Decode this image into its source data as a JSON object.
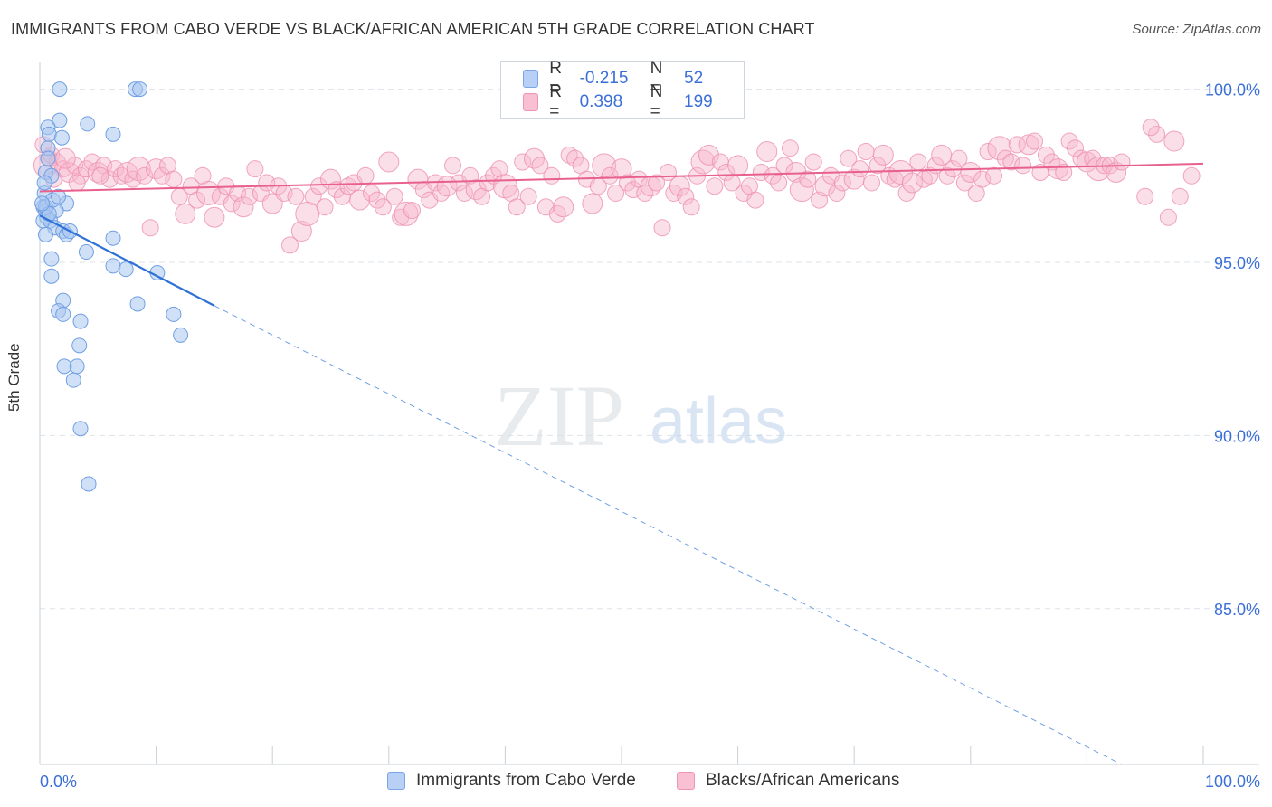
{
  "title": "IMMIGRANTS FROM CABO VERDE VS BLACK/AFRICAN AMERICAN 5TH GRADE CORRELATION CHART",
  "source": "Source: ZipAtlas.com",
  "watermark": {
    "zip": "ZIP",
    "atlas": "atlas"
  },
  "legend": {
    "r_label": "R =",
    "n_label": "N =",
    "rows": [
      {
        "r": "-0.215",
        "n": "52",
        "swatch_fill": "#b8d0f5",
        "swatch_stroke": "#7aa5e6"
      },
      {
        "r": "0.398",
        "n": "199",
        "swatch_fill": "#f8c0d2",
        "swatch_stroke": "#ef94b2"
      }
    ]
  },
  "bottom_legend": [
    {
      "label": "Immigrants from Cabo Verde"
    },
    {
      "label": "Blacks/African Americans"
    }
  ],
  "colors": {
    "blue_fill": "#a9c7f1",
    "blue_stroke": "#6f9fe3",
    "blue_line": "#2f72d6",
    "pink_fill": "#f7b7cc",
    "pink_stroke": "#ee8eb0",
    "pink_line": "#e8608d",
    "axis_label_blue": "#3a6fd8",
    "grid": "#dde3ea"
  },
  "chart_data": {
    "type": "scatter",
    "title": "IMMIGRANTS FROM CABO VERDE VS BLACK/AFRICAN AMERICAN 5TH GRADE CORRELATION CHART",
    "xlabel": "",
    "ylabel": "5th Grade",
    "xlim": [
      0,
      100
    ],
    "ylim": [
      80.5,
      100.8
    ],
    "x_tick_labels": [
      "0.0%",
      "100.0%"
    ],
    "y_ticks": [
      100,
      95,
      90,
      85
    ],
    "y_tick_labels": [
      "100.0%",
      "95.0%",
      "90.0%",
      "85.0%"
    ],
    "grid": true,
    "legend_position": "top-center",
    "series": [
      {
        "name": "Immigrants from Cabo Verde",
        "color": "#a9c7f1",
        "r": -0.215,
        "n": 52,
        "trend": {
          "x0": 0.0,
          "y0": 96.35,
          "x1": 15.0,
          "y1": 93.75,
          "dashed_to_x": 93.0,
          "dashed_to_y": 80.5
        },
        "points": [
          [
            1.7,
            100.0
          ],
          [
            8.2,
            100.0
          ],
          [
            8.6,
            100.0
          ],
          [
            1.7,
            99.1
          ],
          [
            4.1,
            99.0
          ],
          [
            0.7,
            98.9
          ],
          [
            0.8,
            98.7
          ],
          [
            1.9,
            98.6
          ],
          [
            6.3,
            98.7
          ],
          [
            0.7,
            98.3
          ],
          [
            0.5,
            97.6
          ],
          [
            1.0,
            97.5
          ],
          [
            0.4,
            97.0
          ],
          [
            2.3,
            96.7
          ],
          [
            0.3,
            96.6
          ],
          [
            0.5,
            96.5
          ],
          [
            1.4,
            96.5
          ],
          [
            0.6,
            96.3
          ],
          [
            0.3,
            96.2
          ],
          [
            0.9,
            96.2
          ],
          [
            1.3,
            96.0
          ],
          [
            2.0,
            95.9
          ],
          [
            2.3,
            95.8
          ],
          [
            0.5,
            95.8
          ],
          [
            6.3,
            95.7
          ],
          [
            4.0,
            95.3
          ],
          [
            1.0,
            95.1
          ],
          [
            6.3,
            94.9
          ],
          [
            7.4,
            94.8
          ],
          [
            10.1,
            94.7
          ],
          [
            1.0,
            94.6
          ],
          [
            2.0,
            93.9
          ],
          [
            8.4,
            93.8
          ],
          [
            1.6,
            93.6
          ],
          [
            2.0,
            93.5
          ],
          [
            11.5,
            93.5
          ],
          [
            3.5,
            93.3
          ],
          [
            12.1,
            92.9
          ],
          [
            3.4,
            92.6
          ],
          [
            2.1,
            92.0
          ],
          [
            3.2,
            92.0
          ],
          [
            2.9,
            91.6
          ],
          [
            3.5,
            90.2
          ],
          [
            4.2,
            88.6
          ],
          [
            0.5,
            96.6
          ],
          [
            0.8,
            96.4
          ],
          [
            1.1,
            96.8
          ],
          [
            0.4,
            97.3
          ],
          [
            1.6,
            96.9
          ],
          [
            0.7,
            98.0
          ],
          [
            2.6,
            95.9
          ],
          [
            0.2,
            96.7
          ]
        ]
      },
      {
        "name": "Blacks/African Americans",
        "color": "#f7b7cc",
        "r": 0.398,
        "n": 199,
        "trend": {
          "x0": 0.0,
          "y0": 97.05,
          "x1": 100.0,
          "y1": 97.85
        },
        "points": [
          [
            0.5,
            97.8
          ],
          [
            0.8,
            98.0
          ],
          [
            1.0,
            98.1
          ],
          [
            1.5,
            97.9
          ],
          [
            2.0,
            97.7
          ],
          [
            2.5,
            97.6
          ],
          [
            3.0,
            97.8
          ],
          [
            3.5,
            97.5
          ],
          [
            4.0,
            97.7
          ],
          [
            4.5,
            97.9
          ],
          [
            5.0,
            97.6
          ],
          [
            5.5,
            97.8
          ],
          [
            6.0,
            97.4
          ],
          [
            6.5,
            97.7
          ],
          [
            7.0,
            97.5
          ],
          [
            7.5,
            97.6
          ],
          [
            8.0,
            97.4
          ],
          [
            8.5,
            97.7
          ],
          [
            9.0,
            97.5
          ],
          [
            1.2,
            97.4
          ],
          [
            2.2,
            98.0
          ],
          [
            3.2,
            97.3
          ],
          [
            5.2,
            97.5
          ],
          [
            0.3,
            98.4
          ],
          [
            9.5,
            96.0
          ],
          [
            10.0,
            97.7
          ],
          [
            10.5,
            97.5
          ],
          [
            11.0,
            97.8
          ],
          [
            11.5,
            97.4
          ],
          [
            12.0,
            96.9
          ],
          [
            12.5,
            96.4
          ],
          [
            13.0,
            97.2
          ],
          [
            13.5,
            96.8
          ],
          [
            14.0,
            97.5
          ],
          [
            14.5,
            97.0
          ],
          [
            15.0,
            96.3
          ],
          [
            15.5,
            96.9
          ],
          [
            16.0,
            97.2
          ],
          [
            16.5,
            96.7
          ],
          [
            17.0,
            97.0
          ],
          [
            17.5,
            96.6
          ],
          [
            18.0,
            96.9
          ],
          [
            18.5,
            97.7
          ],
          [
            19.0,
            97.0
          ],
          [
            19.5,
            97.3
          ],
          [
            20.0,
            96.7
          ],
          [
            20.5,
            97.2
          ],
          [
            21.0,
            97.0
          ],
          [
            21.5,
            95.5
          ],
          [
            22.0,
            96.9
          ],
          [
            22.5,
            95.9
          ],
          [
            23.0,
            96.4
          ],
          [
            23.5,
            96.9
          ],
          [
            24.0,
            97.2
          ],
          [
            24.5,
            96.6
          ],
          [
            25.0,
            97.4
          ],
          [
            25.5,
            97.1
          ],
          [
            26.0,
            96.9
          ],
          [
            26.5,
            97.2
          ],
          [
            27.0,
            97.3
          ],
          [
            27.5,
            96.8
          ],
          [
            28.0,
            97.5
          ],
          [
            28.5,
            97.0
          ],
          [
            29.0,
            96.8
          ],
          [
            29.5,
            96.6
          ],
          [
            30.0,
            97.9
          ],
          [
            30.5,
            96.9
          ],
          [
            31.0,
            96.3
          ],
          [
            31.5,
            96.4
          ],
          [
            32.0,
            96.5
          ],
          [
            32.5,
            97.4
          ],
          [
            33.0,
            97.1
          ],
          [
            33.5,
            96.8
          ],
          [
            34.0,
            97.3
          ],
          [
            34.5,
            97.0
          ],
          [
            35.0,
            97.2
          ],
          [
            35.5,
            97.8
          ],
          [
            36.0,
            97.3
          ],
          [
            36.5,
            97.0
          ],
          [
            37.0,
            97.5
          ],
          [
            37.5,
            97.1
          ],
          [
            38.0,
            96.9
          ],
          [
            38.5,
            97.3
          ],
          [
            39.0,
            97.5
          ],
          [
            39.5,
            97.7
          ],
          [
            40.0,
            97.2
          ],
          [
            40.5,
            97.0
          ],
          [
            41.0,
            96.6
          ],
          [
            41.5,
            97.9
          ],
          [
            42.0,
            96.9
          ],
          [
            42.5,
            98.0
          ],
          [
            43.0,
            97.8
          ],
          [
            43.5,
            96.6
          ],
          [
            44.0,
            97.5
          ],
          [
            44.5,
            96.4
          ],
          [
            45.0,
            96.6
          ],
          [
            45.5,
            98.1
          ],
          [
            46.0,
            98.0
          ],
          [
            46.5,
            97.8
          ],
          [
            47.0,
            97.4
          ],
          [
            47.5,
            96.7
          ],
          [
            48.0,
            97.2
          ],
          [
            48.5,
            97.8
          ],
          [
            49.0,
            97.5
          ],
          [
            49.5,
            97.0
          ],
          [
            50.0,
            97.7
          ],
          [
            50.5,
            97.3
          ],
          [
            51.0,
            97.1
          ],
          [
            51.5,
            97.4
          ],
          [
            52.0,
            97.0
          ],
          [
            52.5,
            97.2
          ],
          [
            53.0,
            97.3
          ],
          [
            53.5,
            96.0
          ],
          [
            54.0,
            97.6
          ],
          [
            54.5,
            97.0
          ],
          [
            55.0,
            97.2
          ],
          [
            55.5,
            96.9
          ],
          [
            56.0,
            96.6
          ],
          [
            56.5,
            97.5
          ],
          [
            57.0,
            97.9
          ],
          [
            57.5,
            98.1
          ],
          [
            58.0,
            97.2
          ],
          [
            58.5,
            97.9
          ],
          [
            59.0,
            97.6
          ],
          [
            59.5,
            97.3
          ],
          [
            60.0,
            97.8
          ],
          [
            60.5,
            97.0
          ],
          [
            61.0,
            97.2
          ],
          [
            61.5,
            96.8
          ],
          [
            62.0,
            97.6
          ],
          [
            62.5,
            98.2
          ],
          [
            63.0,
            97.5
          ],
          [
            63.5,
            97.3
          ],
          [
            64.0,
            97.8
          ],
          [
            64.5,
            98.3
          ],
          [
            65.0,
            97.6
          ],
          [
            65.5,
            97.1
          ],
          [
            66.0,
            97.4
          ],
          [
            66.5,
            97.9
          ],
          [
            67.0,
            96.8
          ],
          [
            67.5,
            97.2
          ],
          [
            68.0,
            97.5
          ],
          [
            68.5,
            97.0
          ],
          [
            69.0,
            97.3
          ],
          [
            69.5,
            98.0
          ],
          [
            70.0,
            97.4
          ],
          [
            70.5,
            97.7
          ],
          [
            71.0,
            98.2
          ],
          [
            71.5,
            97.3
          ],
          [
            72.0,
            97.8
          ],
          [
            72.5,
            98.1
          ],
          [
            73.0,
            97.5
          ],
          [
            73.5,
            97.4
          ],
          [
            74.0,
            97.6
          ],
          [
            74.5,
            97.0
          ],
          [
            75.0,
            97.3
          ],
          [
            75.5,
            97.9
          ],
          [
            76.0,
            97.4
          ],
          [
            76.5,
            97.5
          ],
          [
            77.0,
            97.8
          ],
          [
            77.5,
            98.1
          ],
          [
            78.0,
            97.5
          ],
          [
            78.5,
            97.7
          ],
          [
            79.0,
            98.0
          ],
          [
            79.5,
            97.3
          ],
          [
            80.0,
            97.6
          ],
          [
            80.5,
            97.0
          ],
          [
            81.0,
            97.4
          ],
          [
            81.5,
            98.2
          ],
          [
            82.0,
            97.5
          ],
          [
            82.5,
            98.3
          ],
          [
            83.0,
            98.0
          ],
          [
            83.5,
            97.9
          ],
          [
            84.0,
            98.4
          ],
          [
            84.5,
            97.8
          ],
          [
            85.0,
            98.4
          ],
          [
            85.5,
            98.5
          ],
          [
            86.0,
            97.6
          ],
          [
            86.5,
            98.1
          ],
          [
            87.0,
            97.9
          ],
          [
            87.5,
            97.7
          ],
          [
            88.0,
            97.6
          ],
          [
            88.5,
            98.5
          ],
          [
            89.0,
            98.3
          ],
          [
            89.5,
            98.0
          ],
          [
            90.0,
            97.9
          ],
          [
            90.5,
            98.0
          ],
          [
            91.0,
            97.7
          ],
          [
            91.5,
            97.8
          ],
          [
            92.0,
            97.8
          ],
          [
            92.5,
            97.6
          ],
          [
            93.0,
            97.9
          ],
          [
            95.0,
            96.9
          ],
          [
            96.0,
            98.7
          ],
          [
            97.0,
            96.3
          ],
          [
            97.5,
            98.5
          ],
          [
            98.0,
            96.9
          ],
          [
            99.0,
            97.5
          ],
          [
            95.5,
            98.9
          ]
        ]
      }
    ]
  }
}
